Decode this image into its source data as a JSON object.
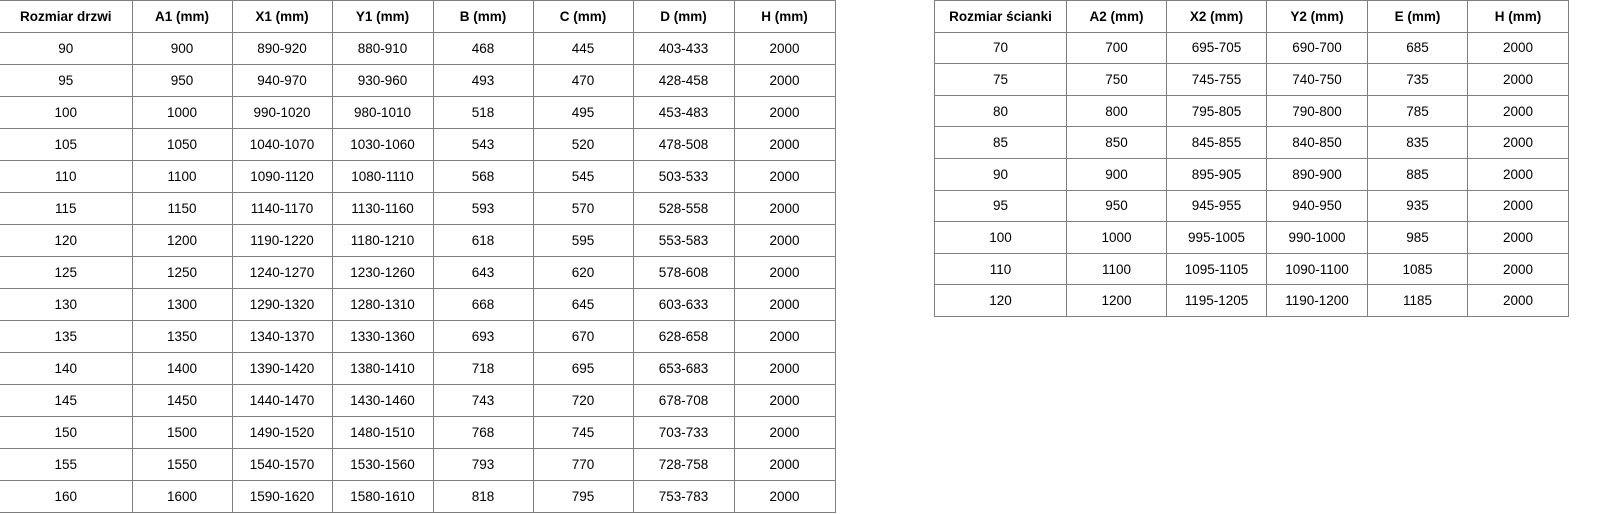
{
  "door_table": {
    "headers": [
      "Rozmiar drzwi",
      "A1 (mm)",
      "X1 (mm)",
      "Y1 (mm)",
      "B (mm)",
      "C (mm)",
      "D (mm)",
      "H (mm)"
    ],
    "rows": [
      [
        "90",
        "900",
        "890-920",
        "880-910",
        "468",
        "445",
        "403-433",
        "2000"
      ],
      [
        "95",
        "950",
        "940-970",
        "930-960",
        "493",
        "470",
        "428-458",
        "2000"
      ],
      [
        "100",
        "1000",
        "990-1020",
        "980-1010",
        "518",
        "495",
        "453-483",
        "2000"
      ],
      [
        "105",
        "1050",
        "1040-1070",
        "1030-1060",
        "543",
        "520",
        "478-508",
        "2000"
      ],
      [
        "110",
        "1100",
        "1090-1120",
        "1080-1110",
        "568",
        "545",
        "503-533",
        "2000"
      ],
      [
        "115",
        "1150",
        "1140-1170",
        "1130-1160",
        "593",
        "570",
        "528-558",
        "2000"
      ],
      [
        "120",
        "1200",
        "1190-1220",
        "1180-1210",
        "618",
        "595",
        "553-583",
        "2000"
      ],
      [
        "125",
        "1250",
        "1240-1270",
        "1230-1260",
        "643",
        "620",
        "578-608",
        "2000"
      ],
      [
        "130",
        "1300",
        "1290-1320",
        "1280-1310",
        "668",
        "645",
        "603-633",
        "2000"
      ],
      [
        "135",
        "1350",
        "1340-1370",
        "1330-1360",
        "693",
        "670",
        "628-658",
        "2000"
      ],
      [
        "140",
        "1400",
        "1390-1420",
        "1380-1410",
        "718",
        "695",
        "653-683",
        "2000"
      ],
      [
        "145",
        "1450",
        "1440-1470",
        "1430-1460",
        "743",
        "720",
        "678-708",
        "2000"
      ],
      [
        "150",
        "1500",
        "1490-1520",
        "1480-1510",
        "768",
        "745",
        "703-733",
        "2000"
      ],
      [
        "155",
        "1550",
        "1540-1570",
        "1530-1560",
        "793",
        "770",
        "728-758",
        "2000"
      ],
      [
        "160",
        "1600",
        "1590-1620",
        "1580-1610",
        "818",
        "795",
        "753-783",
        "2000"
      ]
    ]
  },
  "wall_table": {
    "headers": [
      "Rozmiar ścianki",
      "A2 (mm)",
      "X2 (mm)",
      "Y2 (mm)",
      "E (mm)",
      "H (mm)"
    ],
    "rows": [
      [
        "70",
        "700",
        "695-705",
        "690-700",
        "685",
        "2000"
      ],
      [
        "75",
        "750",
        "745-755",
        "740-750",
        "735",
        "2000"
      ],
      [
        "80",
        "800",
        "795-805",
        "790-800",
        "785",
        "2000"
      ],
      [
        "85",
        "850",
        "845-855",
        "840-850",
        "835",
        "2000"
      ],
      [
        "90",
        "900",
        "895-905",
        "890-900",
        "885",
        "2000"
      ],
      [
        "95",
        "950",
        "945-955",
        "940-950",
        "935",
        "2000"
      ],
      [
        "100",
        "1000",
        "995-1005",
        "990-1000",
        "985",
        "2000"
      ],
      [
        "110",
        "1100",
        "1095-1105",
        "1090-1100",
        "1085",
        "2000"
      ],
      [
        "120",
        "1200",
        "1195-1205",
        "1190-1200",
        "1185",
        "2000"
      ]
    ]
  }
}
